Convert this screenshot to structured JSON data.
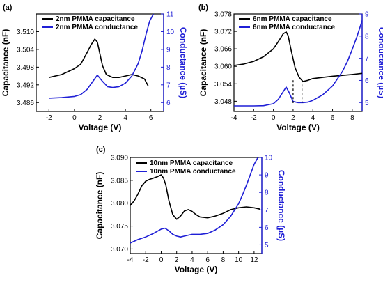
{
  "chart_data": [
    {
      "panel": "(a)",
      "type": "line",
      "xlabel": "Voltage (V)",
      "ylabel": "Capacitance (nF)",
      "y2label": "Conductance (µS)",
      "xlim": [
        -3,
        7
      ],
      "ylim": [
        3.483,
        3.516
      ],
      "y2lim": [
        5.5,
        11
      ],
      "xticks": [
        "-2",
        "0",
        "2",
        "4",
        "6"
      ],
      "yticks": [
        "3.486",
        "3.492",
        "3.498",
        "3.504",
        "3.510"
      ],
      "y2ticks": [
        "6",
        "7",
        "8",
        "9",
        "10",
        "11"
      ],
      "xtick_values": [
        -2,
        0,
        2,
        4,
        6
      ],
      "ytick_values": [
        3.486,
        3.492,
        3.498,
        3.504,
        3.51
      ],
      "y2tick_values": [
        6,
        7,
        8,
        9,
        10,
        11
      ],
      "series": [
        {
          "name": "2nm PMMA capacitance",
          "color": "#000000",
          "axis": "left",
          "x": [
            -2,
            -1,
            0,
            0.5,
            1,
            1.3,
            1.6,
            1.8,
            2.0,
            2.2,
            2.5,
            3,
            3.5,
            4,
            4.5,
            5,
            5.5,
            5.8
          ],
          "y": [
            3.4945,
            3.4955,
            3.4975,
            3.499,
            3.503,
            3.5055,
            3.5075,
            3.5065,
            3.5025,
            3.4985,
            3.4955,
            3.4945,
            3.4945,
            3.495,
            3.4955,
            3.495,
            3.494,
            3.4915
          ]
        },
        {
          "name": "2nm PMMA conductance",
          "color": "#1f1fd6",
          "axis": "right",
          "x": [
            -2,
            -1,
            0,
            0.5,
            1,
            1.4,
            1.8,
            2.2,
            2.6,
            3,
            3.5,
            4,
            4.5,
            5,
            5.3,
            5.6,
            5.9,
            6.2
          ],
          "y": [
            6.25,
            6.28,
            6.35,
            6.45,
            6.75,
            7.15,
            7.55,
            7.2,
            6.9,
            6.85,
            6.9,
            7.1,
            7.5,
            8.2,
            8.9,
            9.8,
            10.6,
            11
          ]
        }
      ]
    },
    {
      "panel": "(b)",
      "type": "line",
      "xlabel": "Voltage (V)",
      "ylabel": "Capacitance (nF)",
      "y2label": "Conductance (µS)",
      "xlim": [
        -4,
        9
      ],
      "ylim": [
        3.0445,
        3.078
      ],
      "y2lim": [
        4.6,
        9
      ],
      "xticks": [
        "-4",
        "-2",
        "0",
        "2",
        "4",
        "6",
        "8"
      ],
      "yticks": [
        "3.048",
        "3.054",
        "3.060",
        "3.066",
        "3.072",
        "3.078"
      ],
      "y2ticks": [
        "5",
        "6",
        "7",
        "8",
        "9"
      ],
      "xtick_values": [
        -4,
        -2,
        0,
        2,
        4,
        6,
        8
      ],
      "ytick_values": [
        3.048,
        3.054,
        3.06,
        3.066,
        3.072,
        3.078
      ],
      "y2tick_values": [
        5,
        6,
        7,
        8,
        9
      ],
      "dashed_markers_x": [
        2.0,
        2.9
      ],
      "series": [
        {
          "name": "6nm PMMA capacitance",
          "color": "#000000",
          "axis": "left",
          "x": [
            -4,
            -3,
            -2,
            -1,
            0,
            0.5,
            1.0,
            1.3,
            1.5,
            1.8,
            2.2,
            2.6,
            3.0,
            3.5,
            4,
            5,
            6,
            7,
            8,
            9
          ],
          "y": [
            3.0603,
            3.0608,
            3.0617,
            3.0633,
            3.066,
            3.0685,
            3.0712,
            3.0718,
            3.0705,
            3.0655,
            3.0595,
            3.0563,
            3.0548,
            3.0552,
            3.0558,
            3.0562,
            3.0566,
            3.0569,
            3.0572,
            3.0576
          ]
        },
        {
          "name": "6nm PMMA conductance",
          "color": "#1f1fd6",
          "axis": "right",
          "x": [
            -4,
            -3,
            -2,
            -1,
            0,
            0.5,
            1.0,
            1.3,
            1.6,
            2.0,
            2.5,
            3.0,
            3.5,
            4,
            5,
            6,
            7,
            7.5,
            8,
            8.5,
            9
          ],
          "y": [
            4.85,
            4.85,
            4.85,
            4.86,
            4.95,
            5.15,
            5.5,
            5.7,
            5.45,
            5.05,
            5.0,
            5.0,
            5.02,
            5.1,
            5.35,
            5.75,
            6.4,
            6.85,
            7.4,
            8.0,
            8.7
          ]
        }
      ]
    },
    {
      "panel": "(c)",
      "type": "line",
      "xlabel": "Voltage (V)",
      "ylabel": "Capacitance (nF)",
      "y2label": "Conductance (µS)",
      "xlim": [
        -4,
        13
      ],
      "ylim": [
        3.069,
        3.09
      ],
      "y2lim": [
        4.5,
        10
      ],
      "xticks": [
        "-4",
        "-2",
        "0",
        "2",
        "4",
        "6",
        "8",
        "10",
        "12"
      ],
      "yticks": [
        "3.070",
        "3.075",
        "3.080",
        "3.085",
        "3.090"
      ],
      "y2ticks": [
        "5",
        "6",
        "7",
        "8",
        "9",
        "10"
      ],
      "xtick_values": [
        -4,
        -2,
        0,
        2,
        4,
        6,
        8,
        10,
        12
      ],
      "ytick_values": [
        3.07,
        3.075,
        3.08,
        3.085,
        3.09
      ],
      "y2tick_values": [
        5,
        6,
        7,
        8,
        9,
        10
      ],
      "series": [
        {
          "name": "10nm PMMA capacitance",
          "color": "#000000",
          "axis": "left",
          "x": [
            -4,
            -3.5,
            -3,
            -2.5,
            -2,
            -1.5,
            -1,
            -0.5,
            0,
            0.3,
            0.6,
            1.0,
            1.5,
            2,
            2.5,
            3,
            3.5,
            4,
            4.5,
            5,
            6,
            7,
            8,
            9,
            10,
            11,
            12,
            12.8
          ],
          "y": [
            3.0795,
            3.0805,
            3.082,
            3.0838,
            3.0848,
            3.0852,
            3.0855,
            3.0858,
            3.0862,
            3.0855,
            3.084,
            3.0805,
            3.0775,
            3.0765,
            3.0772,
            3.0783,
            3.0786,
            3.0782,
            3.0775,
            3.077,
            3.0768,
            3.0772,
            3.0778,
            3.0786,
            3.079,
            3.0792,
            3.079,
            3.0787
          ]
        },
        {
          "name": "10nm PMMA conductance",
          "color": "#1f1fd6",
          "axis": "right",
          "x": [
            -4,
            -3,
            -2,
            -1,
            0,
            0.5,
            1,
            1.5,
            2,
            2.5,
            3,
            4,
            5,
            6,
            7,
            8,
            9,
            10,
            10.5,
            11,
            11.5,
            12,
            12.5
          ],
          "y": [
            5.1,
            5.3,
            5.45,
            5.65,
            5.9,
            5.95,
            5.8,
            5.6,
            5.5,
            5.45,
            5.5,
            5.6,
            5.6,
            5.65,
            5.85,
            6.15,
            6.65,
            7.35,
            7.85,
            8.4,
            9.0,
            9.6,
            10.0
          ]
        }
      ]
    }
  ]
}
